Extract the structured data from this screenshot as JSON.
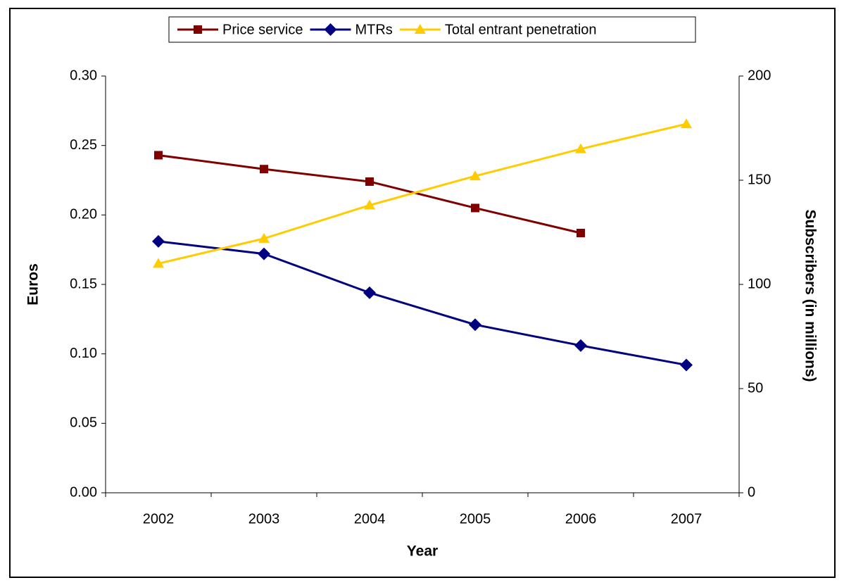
{
  "chart_data": {
    "type": "line",
    "x_label": "Year",
    "y_label": "Euros",
    "y2_label": "Subscribers (in millions)",
    "categories": [
      "2002",
      "2003",
      "2004",
      "2005",
      "2006",
      "2007"
    ],
    "series": [
      {
        "name": "Price service",
        "color": "#800000",
        "marker": "square",
        "values": [
          0.243,
          0.233,
          0.224,
          0.205,
          0.187,
          null
        ]
      },
      {
        "name": "MTRs",
        "color": "#000080",
        "marker": "diamond",
        "values": [
          0.181,
          0.172,
          0.144,
          0.121,
          0.106,
          0.092
        ]
      },
      {
        "name": "Total entrant penetration",
        "color": "#FFCC00",
        "marker": "triangle",
        "axis": "y2",
        "values": [
          110,
          122,
          138,
          152,
          165,
          177
        ]
      }
    ],
    "ylim": [
      0,
      0.3
    ],
    "yticks": [
      {
        "value": 0,
        "label": "0.00"
      },
      {
        "value": 0.05,
        "label": "0.05"
      },
      {
        "value": 0.1,
        "label": "0.10"
      },
      {
        "value": 0.15,
        "label": "0.15"
      },
      {
        "value": 0.2,
        "label": "0.20"
      },
      {
        "value": 0.25,
        "label": "0.25"
      },
      {
        "value": 0.3,
        "label": "0.30"
      }
    ],
    "y2lim": [
      0,
      200
    ],
    "y2ticks": [
      0,
      50,
      100,
      150,
      200
    ],
    "grid": false,
    "legend": "top"
  }
}
